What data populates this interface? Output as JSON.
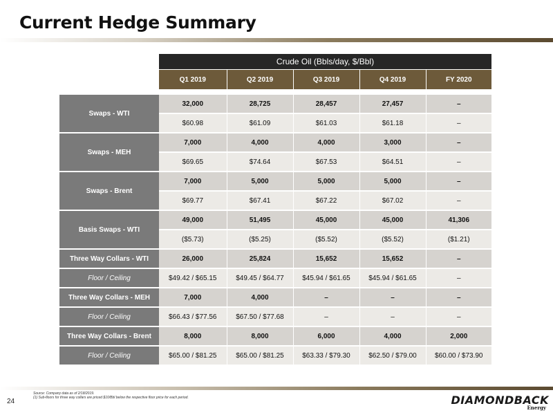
{
  "title": "Current Hedge Summary",
  "table": {
    "super_header": "Crude Oil (Bbls/day, $/Bbl)",
    "columns": [
      "Q1 2019",
      "Q2 2019",
      "Q3 2019",
      "Q4 2019",
      "FY 2020"
    ],
    "groups": [
      {
        "label": "Swaps - WTI",
        "rows": [
          [
            "32,000",
            "28,725",
            "28,457",
            "27,457",
            "–"
          ],
          [
            "$60.98",
            "$61.09",
            "$61.03",
            "$61.18",
            "–"
          ]
        ]
      },
      {
        "label": "Swaps - MEH",
        "rows": [
          [
            "7,000",
            "4,000",
            "4,000",
            "3,000",
            "–"
          ],
          [
            "$69.65",
            "$74.64",
            "$67.53",
            "$64.51",
            "–"
          ]
        ]
      },
      {
        "label": "Swaps - Brent",
        "rows": [
          [
            "7,000",
            "5,000",
            "5,000",
            "5,000",
            "–"
          ],
          [
            "$69.77",
            "$67.41",
            "$67.22",
            "$67.02",
            "–"
          ]
        ]
      },
      {
        "label": "Basis Swaps - WTI",
        "rows": [
          [
            "49,000",
            "51,495",
            "45,000",
            "45,000",
            "41,306"
          ],
          [
            "($5.73)",
            "($5.25)",
            "($5.52)",
            "($5.52)",
            "($1.21)"
          ]
        ]
      },
      {
        "label": "Three Way Collars - WTI",
        "sub_label": "Floor / Ceiling",
        "rows": [
          [
            "26,000",
            "25,824",
            "15,652",
            "15,652",
            "–"
          ],
          [
            "$49.42 / $65.15",
            "$49.45 / $64.77",
            "$45.94 / $61.65",
            "$45.94 / $61.65",
            "–"
          ]
        ]
      },
      {
        "label": "Three Way Collars - MEH",
        "sub_label": "Floor / Ceiling",
        "rows": [
          [
            "7,000",
            "4,000",
            "–",
            "–",
            "–"
          ],
          [
            "$66.43 / $77.56",
            "$67.50 / $77.68",
            "–",
            "–",
            "–"
          ]
        ]
      },
      {
        "label": "Three Way Collars - Brent",
        "sub_label": "Floor / Ceiling",
        "rows": [
          [
            "8,000",
            "8,000",
            "6,000",
            "4,000",
            "2,000"
          ],
          [
            "$65.00 / $81.25",
            "$65.00 / $81.25",
            "$63.33 / $79.30",
            "$62.50 / $79.00",
            "$60.00 / $73.90"
          ]
        ]
      }
    ]
  },
  "footnotes": {
    "source": "Source: Company data as of 2/18/2019.",
    "note1": "(1)      Sub-floors for three way collars are priced $10/Bbl below the respective floor price for each period."
  },
  "page_number": "24",
  "logo": {
    "main": "DIAMONDBACK",
    "sub": "Energy"
  }
}
